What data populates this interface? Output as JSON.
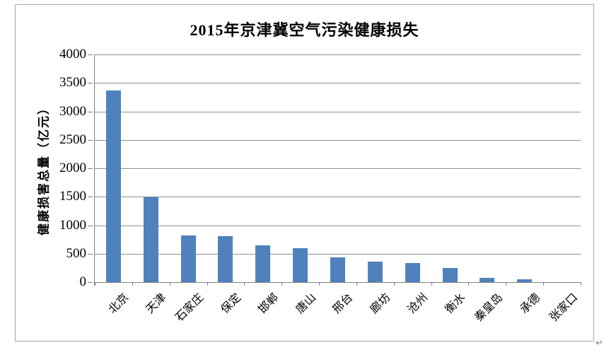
{
  "page": {
    "return_mark": "↵"
  },
  "chart_data": {
    "type": "bar",
    "title": "2015年京津冀空气污染健康损失",
    "xlabel": "",
    "ylabel": "健康损害总量（亿元）",
    "categories": [
      "北京",
      "天津",
      "石家庄",
      "保定",
      "邯郸",
      "唐山",
      "邢台",
      "廊坊",
      "沧州",
      "衡水",
      "秦皇岛",
      "承德",
      "张家口"
    ],
    "values": [
      3370,
      1490,
      820,
      810,
      640,
      600,
      440,
      360,
      340,
      250,
      80,
      45,
      5
    ],
    "ylim": [
      0,
      4000
    ],
    "ytick_step": 500,
    "grid": true,
    "legend": "none",
    "bar_color": "#4F81BD",
    "gridline_color": "#909090",
    "axis_color": "#808080"
  }
}
